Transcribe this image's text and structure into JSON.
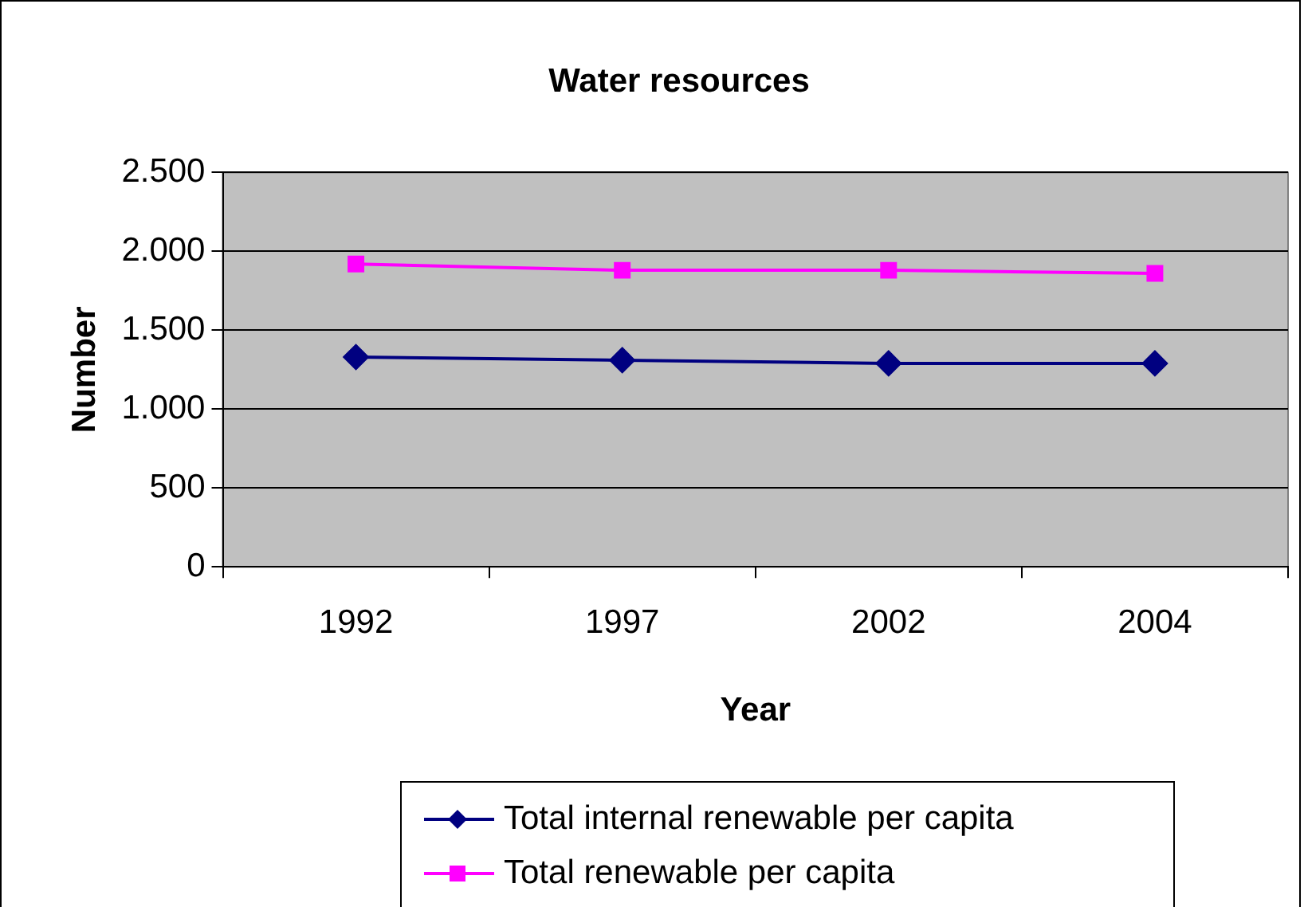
{
  "chart_data": {
    "type": "line",
    "title": "Water resources",
    "xlabel": "Year",
    "ylabel": "Number",
    "categories": [
      "1992",
      "1997",
      "2002",
      "2004"
    ],
    "series": [
      {
        "name": "Total internal renewable per capita",
        "color": "#000080",
        "marker": "diamond",
        "values": [
          1330,
          1310,
          1290,
          1290
        ]
      },
      {
        "name": "Total renewable per capita",
        "color": "#ff00ff",
        "marker": "square",
        "values": [
          1920,
          1880,
          1880,
          1860
        ]
      }
    ],
    "ylim": [
      0,
      2500
    ],
    "yticks": [
      0,
      {
        "value": 500,
        "label": "500"
      },
      {
        "value": 1000,
        "label": "1.000"
      },
      {
        "value": 1500,
        "label": "1.500"
      },
      {
        "value": 2000,
        "label": "2.000"
      },
      {
        "value": 2500,
        "label": "2.500"
      }
    ],
    "grid": "y",
    "legend": "bottom"
  }
}
